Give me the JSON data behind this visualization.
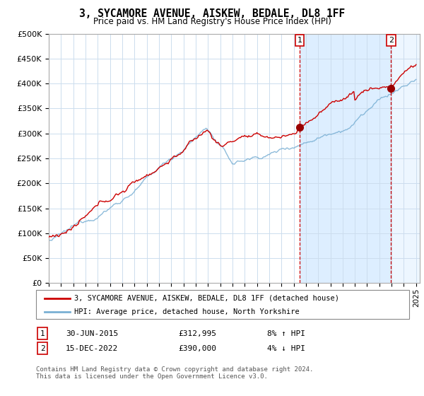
{
  "title": "3, SYCAMORE AVENUE, AISKEW, BEDALE, DL8 1FF",
  "subtitle": "Price paid vs. HM Land Registry's House Price Index (HPI)",
  "ylabel_ticks": [
    "£0",
    "£50K",
    "£100K",
    "£150K",
    "£200K",
    "£250K",
    "£300K",
    "£350K",
    "£400K",
    "£450K",
    "£500K"
  ],
  "ytick_values": [
    0,
    50000,
    100000,
    150000,
    200000,
    250000,
    300000,
    350000,
    400000,
    450000,
    500000
  ],
  "ylim": [
    0,
    500000
  ],
  "legend_line1": "3, SYCAMORE AVENUE, AISKEW, BEDALE, DL8 1FF (detached house)",
  "legend_line2": "HPI: Average price, detached house, North Yorkshire",
  "annotation1_label": "1",
  "annotation1_date": "30-JUN-2015",
  "annotation1_price": "£312,995",
  "annotation1_hpi": "8% ↑ HPI",
  "annotation2_label": "2",
  "annotation2_date": "15-DEC-2022",
  "annotation2_price": "£390,000",
  "annotation2_hpi": "4% ↓ HPI",
  "footer": "Contains HM Land Registry data © Crown copyright and database right 2024.\nThis data is licensed under the Open Government Licence v3.0.",
  "line_color_red": "#cc0000",
  "line_color_blue": "#7ab0d4",
  "shade_color": "#ddeeff",
  "background_color": "#ffffff",
  "grid_color": "#ccddee",
  "sale1_year": 2015.5,
  "sale1_price": 312995,
  "sale2_year": 2022.958,
  "sale2_price": 390000
}
